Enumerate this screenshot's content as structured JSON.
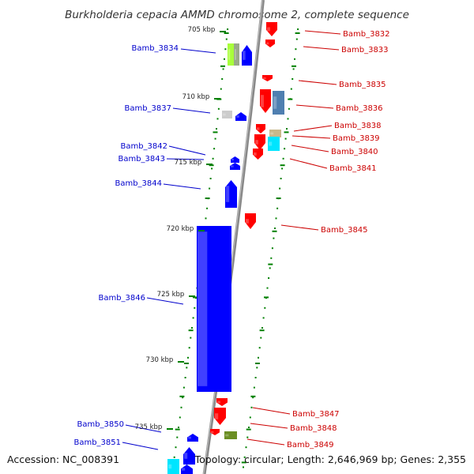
{
  "title": "Burkholderia cepacia AMMD chromosome 2, complete sequence",
  "footer": {
    "accession": "Accession: NC_008391",
    "summary": "Topology: circular; Length: 2,646,969 bp; Genes: 2,355"
  },
  "colors": {
    "forward": "#0000ff",
    "reverse": "#ff0000",
    "backbone": "#888888",
    "ticks": "#008000"
  },
  "scale_labels": [
    "705 kbp",
    "710 kbp",
    "715 kbp",
    "720 kbp",
    "725 kbp",
    "730 kbp",
    "735 kbp"
  ],
  "genes": [
    {
      "name": "Bamb_3832",
      "strand": "reverse"
    },
    {
      "name": "Bamb_3833",
      "strand": "reverse"
    },
    {
      "name": "Bamb_3834",
      "strand": "forward"
    },
    {
      "name": "Bamb_3835",
      "strand": "reverse"
    },
    {
      "name": "Bamb_3836",
      "strand": "reverse"
    },
    {
      "name": "Bamb_3837",
      "strand": "forward"
    },
    {
      "name": "Bamb_3838",
      "strand": "reverse"
    },
    {
      "name": "Bamb_3839",
      "strand": "reverse"
    },
    {
      "name": "Bamb_3840",
      "strand": "reverse"
    },
    {
      "name": "Bamb_3841",
      "strand": "reverse"
    },
    {
      "name": "Bamb_3842",
      "strand": "forward"
    },
    {
      "name": "Bamb_3843",
      "strand": "forward"
    },
    {
      "name": "Bamb_3844",
      "strand": "forward"
    },
    {
      "name": "Bamb_3845",
      "strand": "reverse"
    },
    {
      "name": "Bamb_3846",
      "strand": "forward"
    },
    {
      "name": "Bamb_3847",
      "strand": "reverse"
    },
    {
      "name": "Bamb_3848",
      "strand": "reverse"
    },
    {
      "name": "Bamb_3849",
      "strand": "reverse"
    },
    {
      "name": "Bamb_3850",
      "strand": "forward"
    },
    {
      "name": "Bamb_3851",
      "strand": "forward"
    }
  ]
}
